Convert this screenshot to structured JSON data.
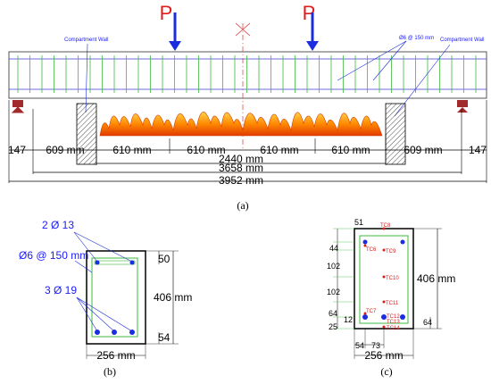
{
  "a": {
    "load_label": "P",
    "compartment_wall_label": "Compartment Wall",
    "stirrup_label": "Ø6 @ 150 mm",
    "dims": {
      "end_left": "147",
      "outer_left": "609 mm",
      "span1": "610 mm",
      "span2": "610 mm",
      "span3": "610 mm",
      "span4": "610 mm",
      "outer_right": "609 mm",
      "end_right": "147",
      "heated": "2440 mm",
      "clear_span": "3658 mm",
      "total": "3952 mm"
    },
    "caption": "(a)"
  },
  "b": {
    "top_bars": "2 Ø 13",
    "stirrups": "Ø6 @ 150 mm",
    "bottom_bars": "3 Ø 19",
    "top_cover": "50",
    "height": "406 mm",
    "bottom_cover": "54",
    "width": "256 mm",
    "caption": "(b)"
  },
  "c": {
    "tc": {
      "tc6": "TC6",
      "tc7": "TC7",
      "tc8": "TC8",
      "tc9": "TC9",
      "tc10": "TC10",
      "tc11": "TC11",
      "tc12": "TC12",
      "tc13": "TC13",
      "tc14": "TC14"
    },
    "dims": {
      "top": "51",
      "d44": "44",
      "d102a": "102",
      "d102b": "102",
      "d64": "64",
      "d12": "12",
      "d25": "25",
      "d64r": "64",
      "d54": "54",
      "d73": "73"
    },
    "height": "406 mm",
    "width": "256 mm",
    "caption": "(c)"
  }
}
